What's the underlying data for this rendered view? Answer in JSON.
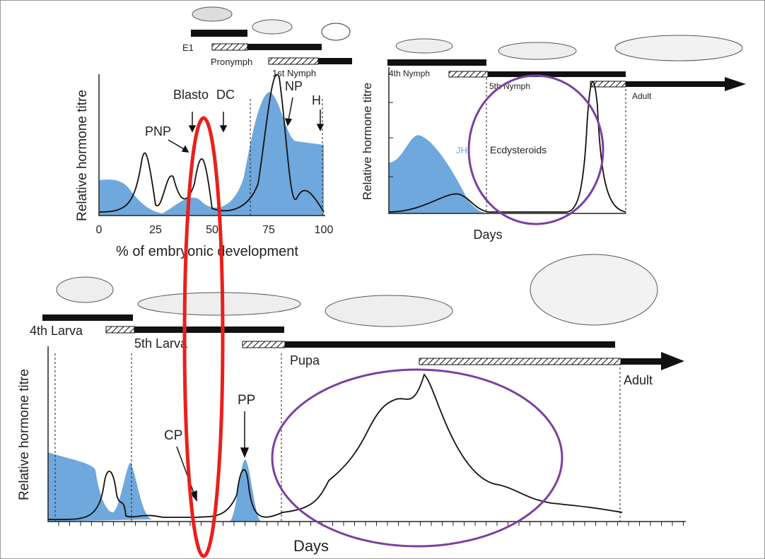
{
  "embryo_panel": {
    "stages": [
      "E1",
      "Pronymph",
      "1st Nymph"
    ],
    "y_label": "Relative hormone titre",
    "events": [
      "Blasto",
      "DC",
      "PNP",
      "NP",
      "H"
    ],
    "x_ticks": [
      0,
      25,
      50,
      75,
      100
    ],
    "x_label": "% of embryonic development"
  },
  "nymph_panel": {
    "stages": [
      "4th Nymph",
      "5th Nymph",
      "Adult"
    ],
    "y_label": "Relative hormone titre",
    "hormones": [
      "JH",
      "Ecdysteroids"
    ],
    "x_label": "Days"
  },
  "larva_panel": {
    "stages": [
      "4th Larva",
      "5th Larva",
      "Pupa",
      "Adult"
    ],
    "y_label": "Relative hormone titre",
    "events": [
      "CP",
      "PP"
    ],
    "x_label": "Days"
  }
}
